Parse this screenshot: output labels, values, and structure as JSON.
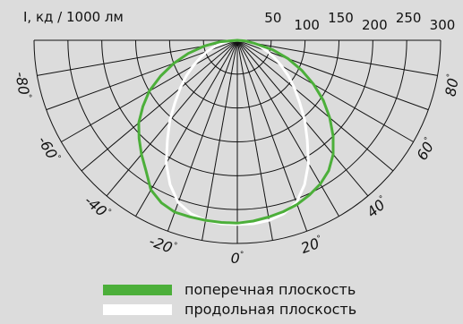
{
  "chart_data": {
    "type": "polar-photometric",
    "unit_label": "I, кд / 1000 лм",
    "radial_ticks": [
      "50",
      "100",
      "150",
      "200",
      "250",
      "300"
    ],
    "radial_max": 300,
    "angle_ticks": [
      {
        "value": -80,
        "label": "-80"
      },
      {
        "value": -60,
        "label": "-60"
      },
      {
        "value": -40,
        "label": "-40"
      },
      {
        "value": -20,
        "label": "-20"
      },
      {
        "value": 0,
        "label": "0"
      },
      {
        "value": 20,
        "label": "20"
      },
      {
        "value": 40,
        "label": "40"
      },
      {
        "value": 60,
        "label": "60"
      },
      {
        "value": 80,
        "label": "80"
      }
    ],
    "degree_symbol": "°",
    "angle_grid_step_deg": 10,
    "series": [
      {
        "name": "поперечная плоскость",
        "color": "#4caf3a",
        "angles": [
          -90,
          -85,
          -80,
          -75,
          -70,
          -65,
          -60,
          -55,
          -50,
          -45,
          -40,
          -35,
          -30,
          -25,
          -20,
          -15,
          -10,
          -5,
          0,
          5,
          10,
          15,
          20,
          25,
          30,
          35,
          40,
          45,
          50,
          55,
          60,
          65,
          70,
          75,
          80,
          85,
          90
        ],
        "values": [
          0,
          25,
          50,
          75,
          100,
          125,
          150,
          170,
          190,
          205,
          220,
          235,
          255,
          265,
          270,
          270,
          270,
          270,
          270,
          268,
          265,
          262,
          258,
          252,
          245,
          235,
          220,
          200,
          178,
          155,
          130,
          105,
          80,
          54,
          25,
          12,
          0
        ]
      },
      {
        "name": "продольная плоскость",
        "color": "#ffffff",
        "angles": [
          -90,
          -85,
          -80,
          -75,
          -70,
          -65,
          -60,
          -55,
          -50,
          -45,
          -40,
          -35,
          -30,
          -25,
          -20,
          -15,
          -10,
          -5,
          0,
          5,
          10,
          15,
          20,
          25,
          30,
          35,
          40,
          45,
          50,
          55,
          60,
          65,
          70,
          75,
          80,
          85,
          90
        ],
        "values": [
          0,
          10,
          22,
          34,
          47,
          60,
          75,
          92,
          110,
          130,
          155,
          180,
          210,
          235,
          255,
          265,
          270,
          272,
          272,
          272,
          270,
          265,
          255,
          235,
          210,
          180,
          155,
          130,
          110,
          92,
          75,
          60,
          47,
          34,
          22,
          10,
          0
        ]
      }
    ]
  }
}
